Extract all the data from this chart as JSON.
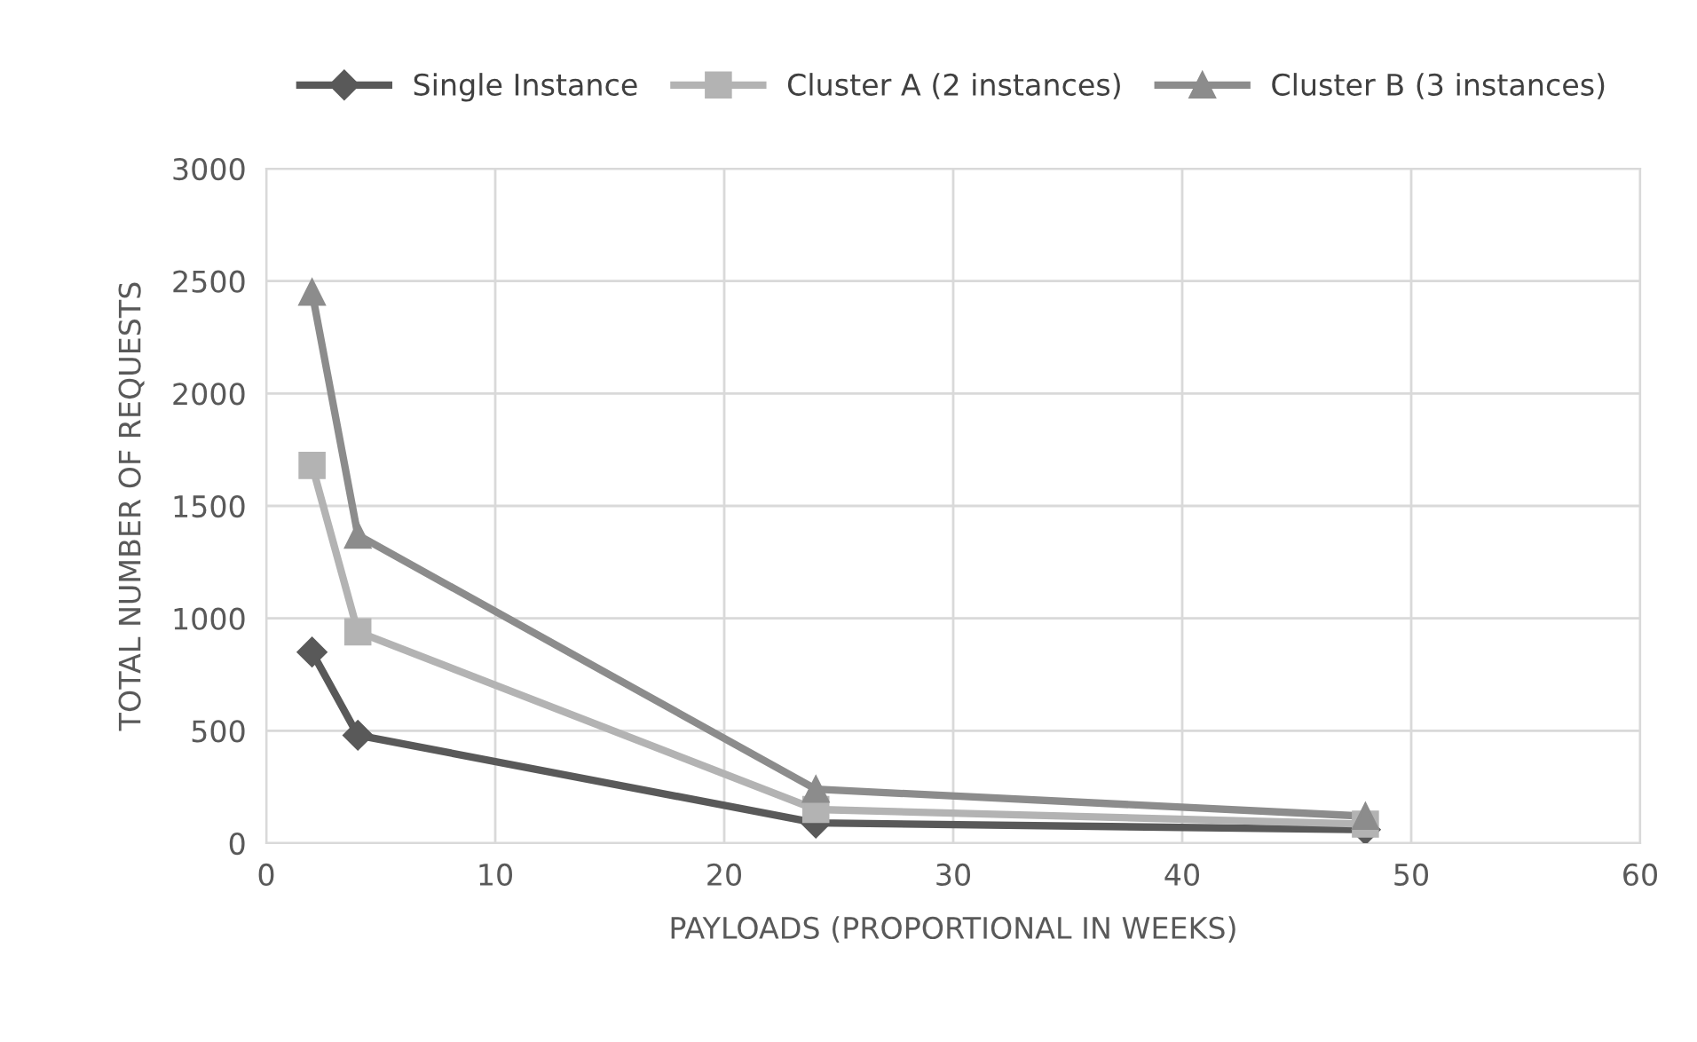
{
  "chart_data": {
    "type": "line",
    "xlabel": "PAYLOADS (PROPORTIONAL IN WEEKS)",
    "ylabel": "TOTAL NUMBER OF REQUESTS",
    "x": [
      2,
      4,
      24,
      48
    ],
    "series": [
      {
        "name": "Single Instance",
        "color": "#595959",
        "marker": "diamond",
        "values": [
          850,
          480,
          90,
          60
        ]
      },
      {
        "name": "Cluster A (2 instances)",
        "color": "#b3b3b3",
        "marker": "square",
        "values": [
          1680,
          940,
          150,
          85
        ]
      },
      {
        "name": "Cluster B (3 instances)",
        "color": "#8c8c8c",
        "marker": "triangle",
        "values": [
          2450,
          1370,
          240,
          120
        ]
      }
    ],
    "xlim": [
      0,
      60
    ],
    "xticks": [
      0,
      10,
      20,
      30,
      40,
      50,
      60
    ],
    "ylim": [
      0,
      3000
    ],
    "yticks": [
      0,
      500,
      1000,
      1500,
      2000,
      2500,
      3000
    ],
    "grid": true,
    "legend": "top",
    "line_style": "solid"
  }
}
